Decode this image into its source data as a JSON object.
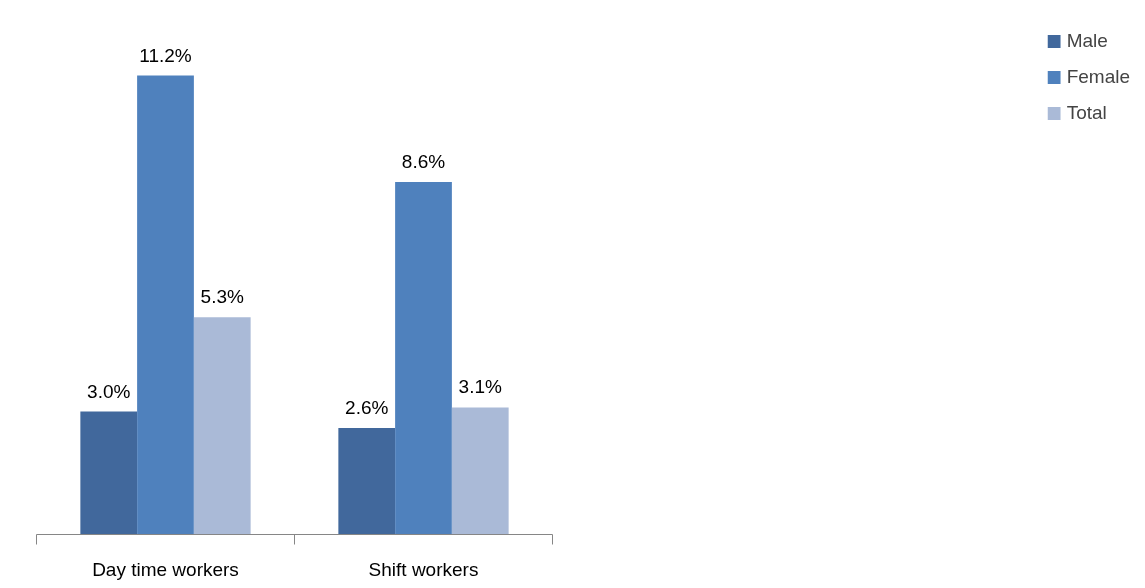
{
  "chart_data": {
    "type": "bar",
    "categories": [
      "Day time workers",
      "Shift workers"
    ],
    "series": [
      {
        "name": "Male",
        "color": "#41689c",
        "values": [
          3.0,
          2.6
        ],
        "value_labels": [
          "3.0%",
          "2.6%"
        ]
      },
      {
        "name": "Female",
        "color": "#4f81bd",
        "values": [
          11.2,
          8.6
        ],
        "value_labels": [
          "11.2%",
          "8.6%"
        ]
      },
      {
        "name": "Total",
        "color": "#aabad7",
        "values": [
          5.3,
          3.1
        ],
        "value_labels": [
          "5.3%",
          "3.1%"
        ]
      }
    ],
    "legend": "right",
    "grid": false
  }
}
